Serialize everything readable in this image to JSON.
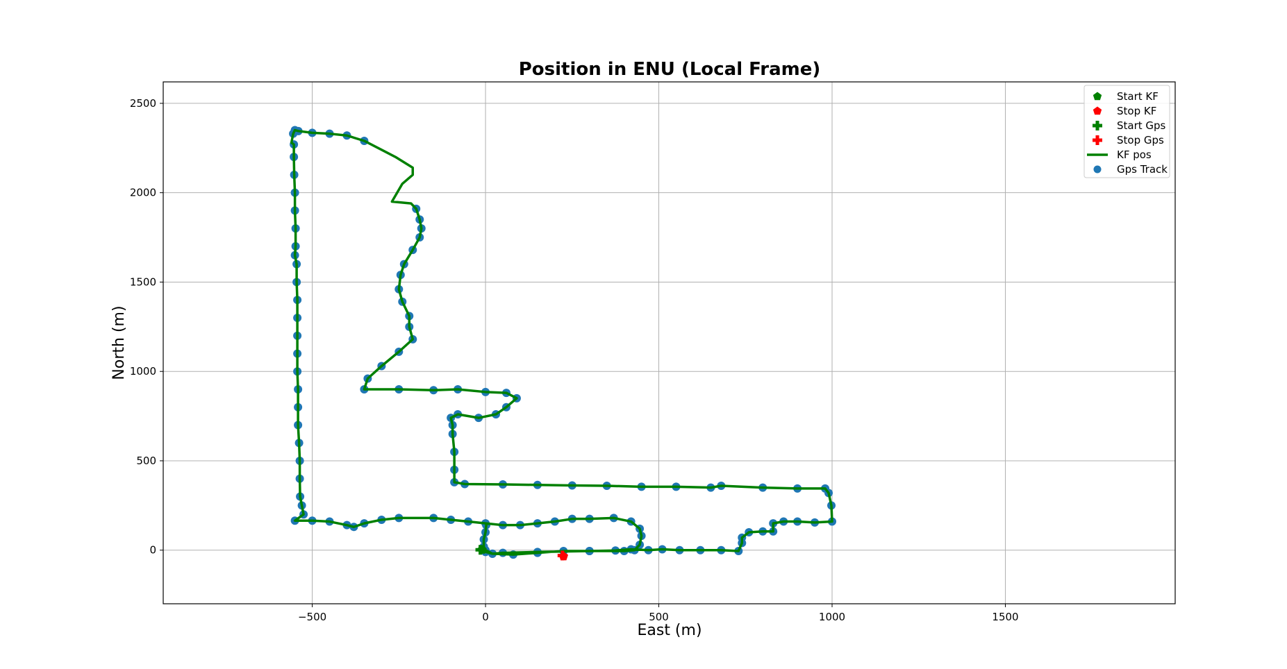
{
  "chart_data": {
    "type": "scatter",
    "title": "Position in ENU (Local Frame)",
    "xlabel": "East (m)",
    "ylabel": "North (m)",
    "xlim": [
      -930,
      1990
    ],
    "ylim": [
      -300,
      2620
    ],
    "xticks": [
      -500,
      0,
      500,
      1000,
      1500
    ],
    "yticks": [
      0,
      500,
      1000,
      1500,
      2000,
      2500
    ],
    "xtick_labels": [
      "−500",
      "0",
      "500",
      "1000",
      "1500"
    ],
    "ytick_labels": [
      "0",
      "500",
      "1000",
      "1500",
      "2000",
      "2500"
    ],
    "grid": true,
    "legend_position": "top-right",
    "colors": {
      "kf": "#008000",
      "gps": "#1f77b4",
      "stop": "#ff0000",
      "grid": "#b0b0b0",
      "axes": "#000000"
    },
    "series": [
      {
        "name": "Start KF",
        "marker": "pentagon",
        "color": "#008000",
        "points": [
          [
            -10,
            2
          ]
        ]
      },
      {
        "name": "Stop KF",
        "marker": "pentagon",
        "color": "#ff0000",
        "points": [
          [
            225,
            -35
          ]
        ]
      },
      {
        "name": "Start Gps",
        "marker": "plus",
        "color": "#008000",
        "points": [
          [
            -15,
            2
          ]
        ]
      },
      {
        "name": "Stop Gps",
        "marker": "plus",
        "color": "#ff0000",
        "points": [
          [
            222,
            -30
          ]
        ]
      },
      {
        "name": "KF pos",
        "marker": "line",
        "color": "#008000",
        "points": [
          [
            0,
            0
          ],
          [
            20,
            -20
          ],
          [
            80,
            -25
          ],
          [
            150,
            -15
          ],
          [
            225,
            -5
          ],
          [
            300,
            -5
          ],
          [
            375,
            -2
          ],
          [
            420,
            5
          ],
          [
            470,
            0
          ],
          [
            510,
            5
          ],
          [
            560,
            0
          ],
          [
            620,
            0
          ],
          [
            680,
            0
          ],
          [
            730,
            -5
          ],
          [
            740,
            40
          ],
          [
            740,
            70
          ],
          [
            760,
            100
          ],
          [
            800,
            105
          ],
          [
            830,
            105
          ],
          [
            830,
            150
          ],
          [
            860,
            160
          ],
          [
            900,
            160
          ],
          [
            950,
            155
          ],
          [
            1000,
            160
          ],
          [
            998,
            250
          ],
          [
            990,
            320
          ],
          [
            980,
            345
          ],
          [
            900,
            345
          ],
          [
            800,
            350
          ],
          [
            680,
            360
          ],
          [
            650,
            350
          ],
          [
            550,
            355
          ],
          [
            450,
            355
          ],
          [
            350,
            360
          ],
          [
            250,
            362
          ],
          [
            150,
            365
          ],
          [
            50,
            368
          ],
          [
            -60,
            370
          ],
          [
            -90,
            380
          ],
          [
            -90,
            450
          ],
          [
            -90,
            550
          ],
          [
            -95,
            650
          ],
          [
            -95,
            700
          ],
          [
            -100,
            740
          ],
          [
            -80,
            760
          ],
          [
            -20,
            740
          ],
          [
            30,
            760
          ],
          [
            60,
            800
          ],
          [
            90,
            850
          ],
          [
            60,
            880
          ],
          [
            0,
            885
          ],
          [
            -80,
            900
          ],
          [
            -150,
            895
          ],
          [
            -250,
            900
          ],
          [
            -350,
            900
          ],
          [
            -340,
            960
          ],
          [
            -300,
            1030
          ],
          [
            -250,
            1110
          ],
          [
            -210,
            1180
          ],
          [
            -220,
            1250
          ],
          [
            -220,
            1310
          ],
          [
            -240,
            1390
          ],
          [
            -250,
            1460
          ],
          [
            -245,
            1540
          ],
          [
            -235,
            1600
          ],
          [
            -210,
            1680
          ],
          [
            -190,
            1750
          ],
          [
            -185,
            1800
          ],
          [
            -190,
            1850
          ],
          [
            -200,
            1910
          ],
          [
            -215,
            1940
          ],
          [
            -270,
            1950
          ],
          [
            -255,
            2000
          ],
          [
            -240,
            2050
          ],
          [
            -210,
            2100
          ],
          [
            -210,
            2140
          ],
          [
            -260,
            2200
          ],
          [
            -300,
            2240
          ],
          [
            -350,
            2290
          ],
          [
            -400,
            2320
          ],
          [
            -450,
            2330
          ],
          [
            -500,
            2335
          ],
          [
            -540,
            2345
          ],
          [
            -550,
            2350
          ],
          [
            -555,
            2330
          ],
          [
            -560,
            2280
          ],
          [
            -553,
            2270
          ],
          [
            -553,
            2200
          ],
          [
            -552,
            2100
          ],
          [
            -550,
            2000
          ],
          [
            -550,
            1900
          ],
          [
            -548,
            1800
          ],
          [
            -548,
            1700
          ],
          [
            -550,
            1650
          ],
          [
            -545,
            1600
          ],
          [
            -545,
            1500
          ],
          [
            -543,
            1400
          ],
          [
            -543,
            1300
          ],
          [
            -543,
            1200
          ],
          [
            -543,
            1100
          ],
          [
            -543,
            1000
          ],
          [
            -541,
            900
          ],
          [
            -541,
            800
          ],
          [
            -541,
            700
          ],
          [
            -538,
            600
          ],
          [
            -536,
            500
          ],
          [
            -536,
            400
          ],
          [
            -535,
            300
          ],
          [
            -530,
            250
          ],
          [
            -525,
            200
          ],
          [
            -550,
            165
          ],
          [
            -500,
            165
          ],
          [
            -450,
            160
          ],
          [
            -400,
            140
          ],
          [
            -380,
            130
          ],
          [
            -350,
            150
          ],
          [
            -300,
            170
          ],
          [
            -250,
            180
          ],
          [
            -150,
            180
          ],
          [
            -100,
            170
          ],
          [
            -50,
            160
          ],
          [
            0,
            150
          ],
          [
            50,
            140
          ],
          [
            100,
            140
          ],
          [
            150,
            150
          ],
          [
            200,
            160
          ],
          [
            250,
            175
          ],
          [
            300,
            175
          ],
          [
            370,
            180
          ],
          [
            420,
            160
          ],
          [
            445,
            120
          ],
          [
            450,
            80
          ],
          [
            445,
            30
          ],
          [
            430,
            0
          ],
          [
            400,
            -5
          ],
          [
            300,
            -5
          ],
          [
            150,
            -10
          ],
          [
            50,
            -15
          ],
          [
            20,
            -20
          ],
          [
            0,
            -10
          ],
          [
            -5,
            20
          ],
          [
            -5,
            60
          ],
          [
            0,
            100
          ],
          [
            2,
            140
          ]
        ]
      },
      {
        "name": "Gps Track",
        "marker": "circle",
        "color": "#1f77b4",
        "points": [
          [
            0,
            0
          ],
          [
            20,
            -20
          ],
          [
            80,
            -25
          ],
          [
            150,
            -15
          ],
          [
            225,
            -5
          ],
          [
            300,
            -5
          ],
          [
            375,
            -2
          ],
          [
            420,
            5
          ],
          [
            470,
            0
          ],
          [
            510,
            5
          ],
          [
            560,
            0
          ],
          [
            620,
            0
          ],
          [
            680,
            0
          ],
          [
            730,
            -5
          ],
          [
            740,
            40
          ],
          [
            740,
            70
          ],
          [
            760,
            100
          ],
          [
            800,
            105
          ],
          [
            830,
            105
          ],
          [
            830,
            150
          ],
          [
            860,
            160
          ],
          [
            900,
            160
          ],
          [
            950,
            155
          ],
          [
            1000,
            160
          ],
          [
            998,
            250
          ],
          [
            990,
            320
          ],
          [
            980,
            345
          ],
          [
            900,
            345
          ],
          [
            800,
            350
          ],
          [
            680,
            360
          ],
          [
            650,
            350
          ],
          [
            550,
            355
          ],
          [
            450,
            355
          ],
          [
            350,
            360
          ],
          [
            250,
            362
          ],
          [
            150,
            365
          ],
          [
            50,
            368
          ],
          [
            -60,
            370
          ],
          [
            -90,
            380
          ],
          [
            -90,
            450
          ],
          [
            -90,
            550
          ],
          [
            -95,
            650
          ],
          [
            -95,
            700
          ],
          [
            -100,
            740
          ],
          [
            -80,
            760
          ],
          [
            -20,
            740
          ],
          [
            30,
            760
          ],
          [
            60,
            800
          ],
          [
            90,
            850
          ],
          [
            60,
            880
          ],
          [
            0,
            885
          ],
          [
            -80,
            900
          ],
          [
            -150,
            895
          ],
          [
            -250,
            900
          ],
          [
            -350,
            900
          ],
          [
            -340,
            960
          ],
          [
            -300,
            1030
          ],
          [
            -250,
            1110
          ],
          [
            -210,
            1180
          ],
          [
            -220,
            1250
          ],
          [
            -220,
            1310
          ],
          [
            -240,
            1390
          ],
          [
            -250,
            1460
          ],
          [
            -245,
            1540
          ],
          [
            -235,
            1600
          ],
          [
            -210,
            1680
          ],
          [
            -190,
            1750
          ],
          [
            -185,
            1800
          ],
          [
            -190,
            1850
          ],
          [
            -200,
            1910
          ],
          [
            -350,
            2290
          ],
          [
            -400,
            2320
          ],
          [
            -450,
            2330
          ],
          [
            -500,
            2335
          ],
          [
            -540,
            2345
          ],
          [
            -550,
            2350
          ],
          [
            -555,
            2330
          ],
          [
            -553,
            2270
          ],
          [
            -553,
            2200
          ],
          [
            -552,
            2100
          ],
          [
            -550,
            2000
          ],
          [
            -550,
            1900
          ],
          [
            -548,
            1800
          ],
          [
            -548,
            1700
          ],
          [
            -550,
            1650
          ],
          [
            -545,
            1600
          ],
          [
            -545,
            1500
          ],
          [
            -543,
            1400
          ],
          [
            -543,
            1300
          ],
          [
            -543,
            1200
          ],
          [
            -543,
            1100
          ],
          [
            -543,
            1000
          ],
          [
            -541,
            900
          ],
          [
            -541,
            800
          ],
          [
            -541,
            700
          ],
          [
            -538,
            600
          ],
          [
            -536,
            500
          ],
          [
            -536,
            400
          ],
          [
            -535,
            300
          ],
          [
            -530,
            250
          ],
          [
            -525,
            200
          ],
          [
            -550,
            165
          ],
          [
            -500,
            165
          ],
          [
            -450,
            160
          ],
          [
            -400,
            140
          ],
          [
            -380,
            130
          ],
          [
            -350,
            150
          ],
          [
            -300,
            170
          ],
          [
            -250,
            180
          ],
          [
            -150,
            180
          ],
          [
            -100,
            170
          ],
          [
            -50,
            160
          ],
          [
            0,
            150
          ],
          [
            50,
            140
          ],
          [
            100,
            140
          ],
          [
            150,
            150
          ],
          [
            200,
            160
          ],
          [
            250,
            175
          ],
          [
            300,
            175
          ],
          [
            370,
            180
          ],
          [
            420,
            160
          ],
          [
            445,
            120
          ],
          [
            450,
            80
          ],
          [
            445,
            30
          ],
          [
            430,
            0
          ],
          [
            400,
            -5
          ],
          [
            300,
            -5
          ],
          [
            150,
            -10
          ],
          [
            50,
            -15
          ],
          [
            20,
            -20
          ],
          [
            0,
            -10
          ],
          [
            -5,
            20
          ],
          [
            -5,
            60
          ],
          [
            0,
            100
          ],
          [
            2,
            140
          ]
        ]
      }
    ]
  }
}
